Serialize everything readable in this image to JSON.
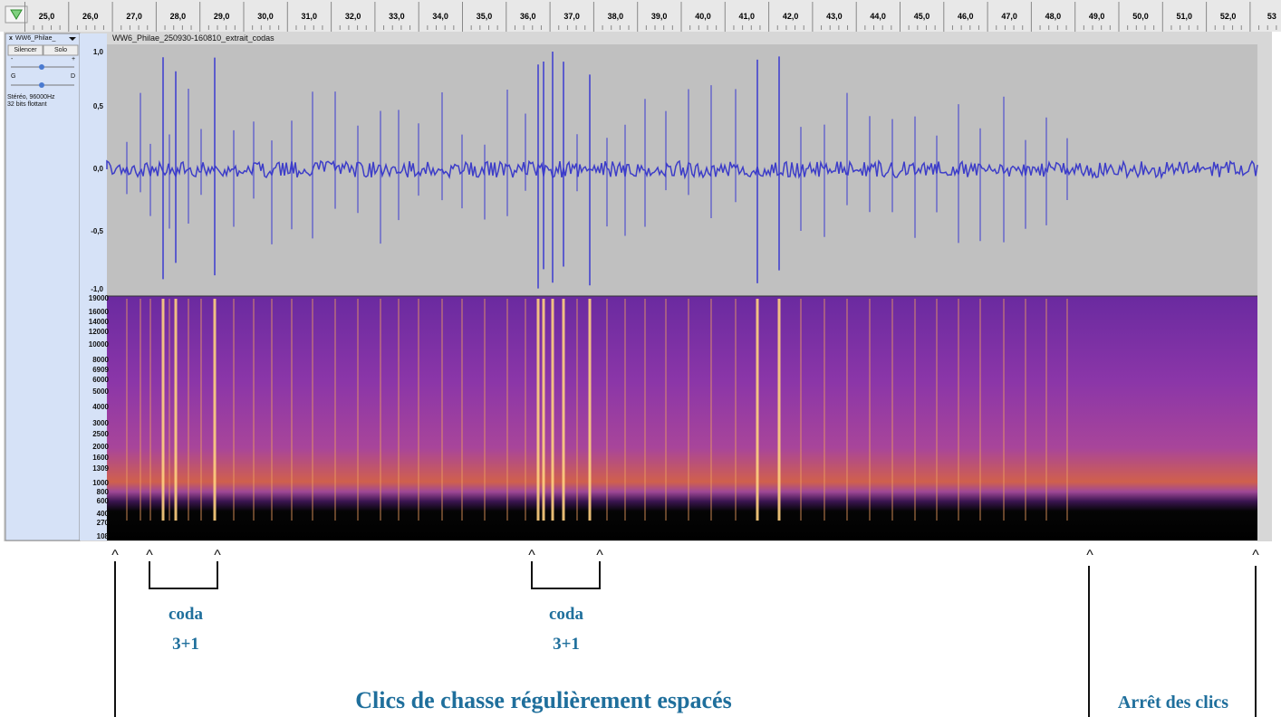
{
  "ruler": {
    "labels": [
      "25,0",
      "26,0",
      "27,0",
      "28,0",
      "29,0",
      "30,0",
      "31,0",
      "32,0",
      "33,0",
      "34,0",
      "35,0",
      "36,0",
      "37,0",
      "38,0",
      "39,0",
      "40,0",
      "41,0",
      "42,0",
      "43,0",
      "44,0",
      "45,0",
      "46,0",
      "47,0",
      "48,0",
      "49,0",
      "50,0",
      "51,0",
      "52,0",
      "53"
    ]
  },
  "track": {
    "close": "x",
    "name": "WW6_Philae_",
    "mute": "Silencer",
    "solo": "Solo",
    "gain_minus": "-",
    "gain_plus": "+",
    "pan_left": "G",
    "pan_right": "D",
    "format": "Stéréo, 96000Hz",
    "sample": "32 bits flottant",
    "title": "WW6_Philae_250930-160810_extrait_codas"
  },
  "waveform_axis": [
    "1,0",
    "0,5",
    "0,0",
    "-0,5",
    "-1,0"
  ],
  "spectrogram_axis": [
    "19000",
    "16000",
    "14000",
    "12000",
    "10000",
    "8000",
    "6909",
    "6000",
    "5000",
    "4000",
    "3000",
    "2500",
    "2000",
    "1600",
    "1309",
    "1000",
    "800",
    "600",
    "400",
    "270",
    "108"
  ],
  "annotations": {
    "carets": [
      "^",
      "^",
      "^",
      "^",
      "^",
      "^",
      "^"
    ],
    "codas": [
      {
        "label": "coda",
        "count": "3+1"
      },
      {
        "label": "coda",
        "count": "3+1"
      }
    ],
    "hunting": "Clics de chasse régulièrement espacés",
    "stop": "Arrêt des clics"
  }
}
